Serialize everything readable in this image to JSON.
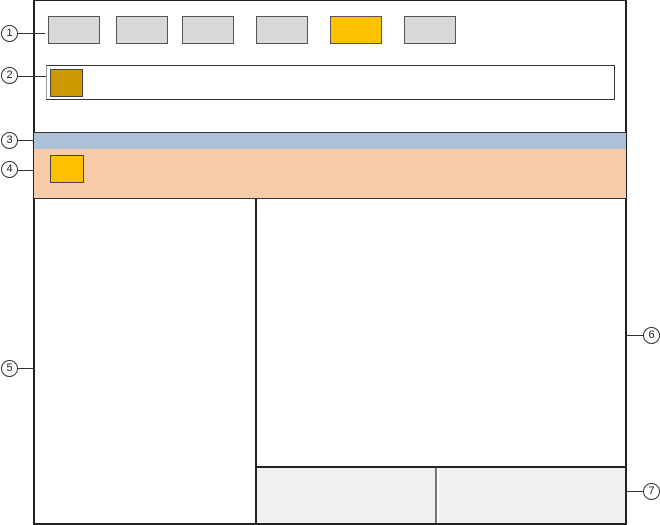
{
  "callouts": [
    "1",
    "2",
    "3",
    "4",
    "5",
    "6",
    "7"
  ],
  "colors": {
    "button": "#d9d9d9",
    "button_active": "#ffc000",
    "address_icon": "#cc9900",
    "band3": "#adc0d9",
    "band4": "#f8cba8",
    "panel_bottom": "#f0f0f0"
  },
  "toolbar": {
    "buttons": 6,
    "active_index": 4
  }
}
